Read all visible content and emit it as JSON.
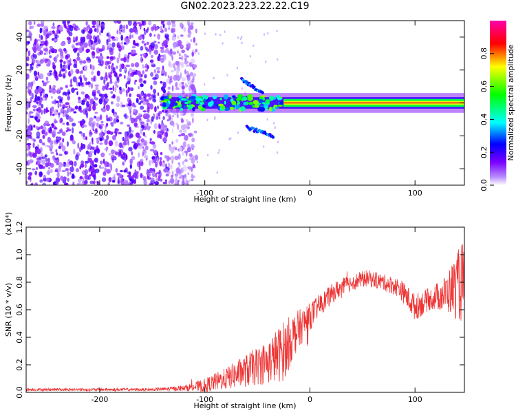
{
  "title": "GN02.2023.223.22.22.C19",
  "chart_data": [
    {
      "type": "heatmap",
      "name": "spectrogram",
      "xlabel": "Height of straight line (km)",
      "ylabel": "Frequency (Hz)",
      "xlim": [
        -270,
        147
      ],
      "ylim": [
        -50,
        50
      ],
      "xticks": [
        -200,
        -100,
        0,
        100
      ],
      "yticks": [
        -40,
        -20,
        0,
        20,
        40
      ],
      "colorbar": {
        "label": "Normalized spectral amplitude",
        "range": [
          0,
          1
        ],
        "ticks": [
          "0.0",
          "0.2",
          "0.4",
          "0.6",
          "0.8"
        ],
        "colors": [
          "#ffffff",
          "#7a00ff",
          "#0000ff",
          "#00ffff",
          "#00ff00",
          "#ffff00",
          "#ff0000",
          "#ff00ff"
        ]
      },
      "features": {
        "noise_region_x": [
          -270,
          -118
        ],
        "signal_band_x": [
          -140,
          147
        ],
        "signal_band_y": [
          -2,
          2
        ],
        "tone_start_x": -25,
        "tone_amplitude": 0.9,
        "chirp_up": {
          "x": [
            -65,
            -45
          ],
          "y": [
            14,
            6
          ]
        },
        "chirp_down": {
          "x": [
            -60,
            -35
          ],
          "y": [
            -15,
            -20
          ]
        }
      }
    },
    {
      "type": "line",
      "name": "snr",
      "xlabel": "Height of straight line (km)",
      "ylabel": "SNR (10 * v/v)",
      "yscale_note": "(x10⁴)",
      "xlim": [
        -270,
        147
      ],
      "ylim": [
        0,
        1.2
      ],
      "xticks": [
        -200,
        -100,
        0,
        100
      ],
      "yticks": [
        "0.0",
        "0.2",
        "0.4",
        "0.6",
        "0.8",
        "1.0",
        "1.2"
      ],
      "color": "#ee3333",
      "series": [
        {
          "envelope_x": [
            -270,
            -200,
            -150,
            -120,
            -100,
            -80,
            -60,
            -40,
            -25,
            -15,
            0,
            10,
            25,
            40,
            55,
            70,
            85,
            100,
            115,
            130,
            145
          ],
          "envelope_y": [
            0.02,
            0.02,
            0.02,
            0.03,
            0.05,
            0.1,
            0.16,
            0.22,
            0.3,
            0.42,
            0.55,
            0.64,
            0.74,
            0.8,
            0.83,
            0.8,
            0.76,
            0.62,
            0.68,
            0.72,
            0.8
          ],
          "noise_y": [
            0.01,
            0.01,
            0.01,
            0.02,
            0.05,
            0.08,
            0.12,
            0.16,
            0.22,
            0.16,
            0.1,
            0.08,
            0.07,
            0.06,
            0.06,
            0.06,
            0.07,
            0.1,
            0.08,
            0.14,
            0.3
          ]
        }
      ]
    }
  ]
}
